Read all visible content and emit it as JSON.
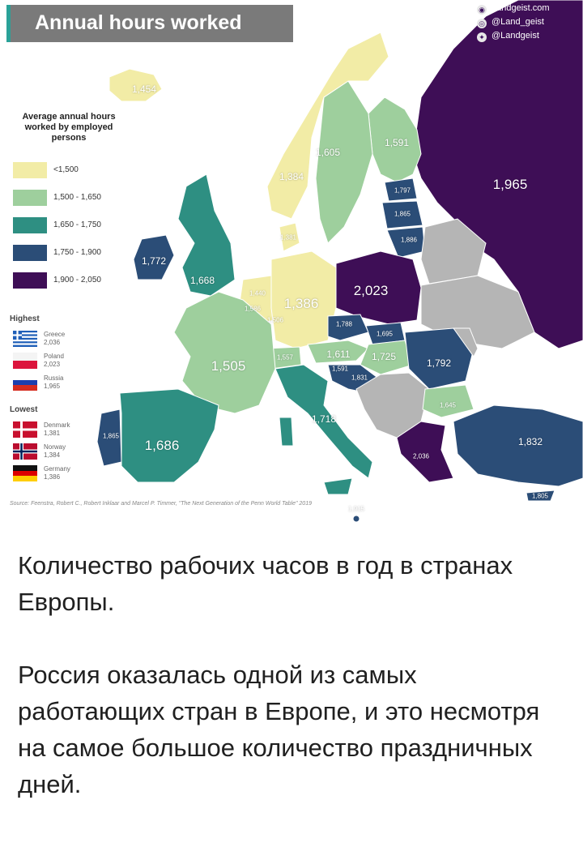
{
  "map": {
    "title": "Annual hours worked",
    "social": {
      "website": "Landgeist.com",
      "instagram": "@Land_geist",
      "twitter": "@Landgeist"
    },
    "legend": {
      "title": "Average annual hours worked by employed persons",
      "bins": [
        {
          "label": "<1,500",
          "color": "#f2eca6"
        },
        {
          "label": "1,500 - 1,650",
          "color": "#9ecf9d"
        },
        {
          "label": "1,650 - 1,750",
          "color": "#2e8f82"
        },
        {
          "label": "1,750 - 1,900",
          "color": "#2b4d77"
        },
        {
          "label": "1,900 - 2,050",
          "color": "#3e0e56"
        }
      ],
      "highest_label": "Highest",
      "highest": [
        {
          "country": "Greece",
          "value": "2,036"
        },
        {
          "country": "Poland",
          "value": "2,023"
        },
        {
          "country": "Russia",
          "value": "1,965"
        }
      ],
      "lowest_label": "Lowest",
      "lowest": [
        {
          "country": "Denmark",
          "value": "1,381"
        },
        {
          "country": "Norway",
          "value": "1,384"
        },
        {
          "country": "Germany",
          "value": "1,386"
        }
      ]
    },
    "source": "Source: Feenstra, Robert C., Robert Inklaar and Marcel P. Timmer, \"The Next Generation of the Penn World Table\" 2019",
    "no_data_color": "#b5b5b5",
    "values": {
      "iceland": "1,454",
      "norway": "1,384",
      "sweden": "1,605",
      "finland": "1,591",
      "russia": "1,965",
      "estonia": "1,797",
      "latvia": "1,865",
      "lithuania": "1,886",
      "denmark": "1,381",
      "ireland": "1,772",
      "uk": "1,668",
      "netherlands": "1,440",
      "belgium": "1,586",
      "luxembourg": "1,506",
      "germany": "1,386",
      "poland": "2,023",
      "czechia": "1,788",
      "slovakia": "1,695",
      "austria": "1,611",
      "hungary": "1,725",
      "romania": "1,792",
      "switzerland": "1,557",
      "france": "1,505",
      "slovenia": "1,591",
      "croatia": "1,831",
      "bulgaria": "1,645",
      "italy": "1,718",
      "portugal": "1,865",
      "spain": "1,686",
      "greece": "2,036",
      "turkey": "1,832",
      "malta": "1,915",
      "cyprus": "1,805"
    }
  },
  "caption": {
    "line1": "Количество рабочих часов в год в странах Европы.",
    "line2": "Россия оказалась одной из самых работающих стран в Европе, и это несмотря на самое большое количество праздничных дней."
  }
}
